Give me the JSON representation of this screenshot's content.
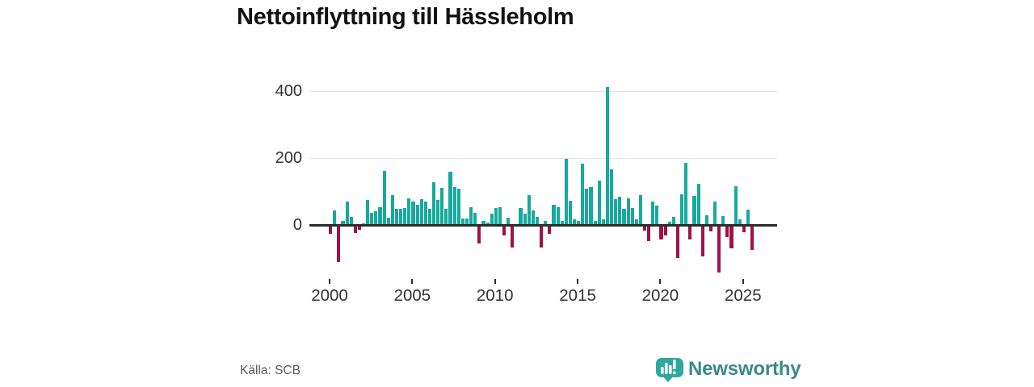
{
  "title": "Nettoinflyttning till Hässleholm",
  "source": "Källa: SCB",
  "branding": {
    "wordmark": "Newsworthy",
    "logo_icon": "speech-bubble-bar-chart"
  },
  "colors": {
    "positive_bar": "#18A99E",
    "negative_bar": "#A21048",
    "gridline": "#e4e4e4",
    "zero_line": "#2b2b2e",
    "axis_text": "#333333",
    "title_text": "#111111",
    "source_text": "#595959",
    "logo_bubble": "#2EA79C",
    "logo_text": "#3A8A86"
  },
  "chart_data": {
    "type": "bar",
    "title": "Nettoinflyttning till Hässleholm",
    "xlabel": "",
    "ylabel": "",
    "frequency": "quarterly",
    "x_start": "2000Q1",
    "x_end": "2025Q3",
    "x_tick_labels": [
      "2000",
      "2005",
      "2010",
      "2015",
      "2020",
      "2025"
    ],
    "y_ticks": [
      0,
      200,
      400
    ],
    "y_tick_labels": [
      "0",
      "200",
      "400"
    ],
    "ylim": [
      -165,
      445
    ],
    "grid": true,
    "legend": "none",
    "values": [
      -22,
      44,
      -106,
      12,
      70,
      24,
      -19,
      -10,
      5,
      76,
      38,
      43,
      55,
      162,
      23,
      90,
      48,
      50,
      52,
      81,
      70,
      60,
      78,
      70,
      48,
      129,
      75,
      113,
      49,
      159,
      115,
      109,
      21,
      20,
      55,
      37,
      -51,
      12,
      7,
      35,
      51,
      53,
      -27,
      22,
      -63,
      0,
      51,
      35,
      91,
      45,
      25,
      -63,
      14,
      -23,
      60,
      54,
      12,
      199,
      74,
      18,
      14,
      185,
      109,
      114,
      12,
      133,
      18,
      413,
      167,
      77,
      86,
      50,
      80,
      51,
      18,
      91,
      -12,
      -43,
      70,
      58,
      -40,
      -28,
      10,
      24,
      -95,
      93,
      187,
      -38,
      88,
      123,
      -91,
      30,
      -16,
      72,
      -139,
      27,
      -31,
      -66,
      116,
      18,
      -18,
      47,
      -70
    ]
  }
}
